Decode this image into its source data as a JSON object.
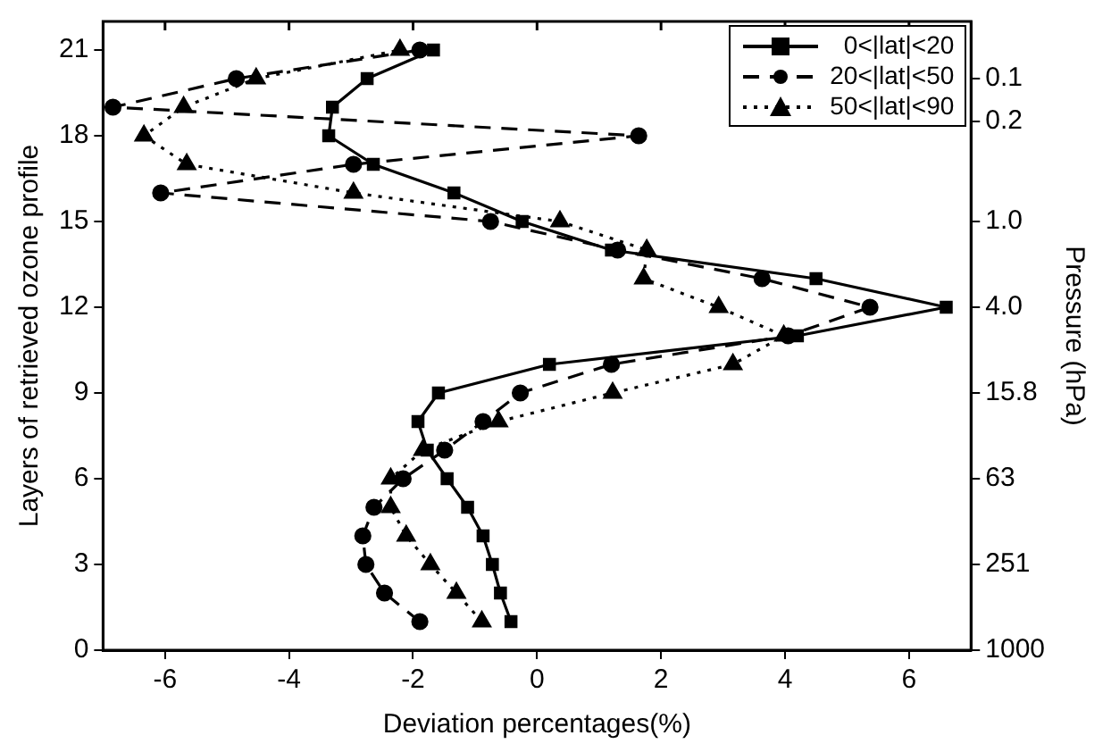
{
  "chart_data": {
    "type": "line",
    "xlabel": "Deviation percentages(%)",
    "ylabel": "Layers of retrieved ozone profile",
    "y2label": "Pressure (hPa)",
    "xlim": [
      -7,
      7
    ],
    "xticks": [
      -6,
      -4,
      -2,
      0,
      2,
      4,
      6
    ],
    "ylim": [
      0,
      22
    ],
    "yticks": [
      0,
      3,
      6,
      9,
      12,
      15,
      18,
      21
    ],
    "y2lim": [
      1000,
      0.04
    ],
    "y2ticks": [
      1000,
      251,
      63,
      15.8,
      {
        "value": 4,
        "label": "4.0"
      },
      {
        "value": 1,
        "label": "1.0"
      },
      0.2,
      0.1
    ],
    "log": "y2",
    "grid": false,
    "legend": "top right",
    "series": [
      {
        "name": "0<|lat|<20",
        "color": "#000000",
        "marker": "square",
        "line_style": "solid",
        "x": [
          -0.42,
          -0.59,
          -0.72,
          -0.87,
          -1.12,
          -1.45,
          -1.77,
          -1.92,
          -1.59,
          0.2,
          4.2,
          6.6,
          4.5,
          1.2,
          -0.24,
          -1.34,
          -2.64,
          -3.36,
          -3.3,
          -2.74,
          -1.67
        ],
        "values": [
          1,
          2,
          3,
          4,
          5,
          6,
          7,
          8,
          9,
          10,
          11,
          12,
          13,
          14,
          15,
          16,
          17,
          18,
          19,
          20,
          21
        ]
      },
      {
        "name": "20<|lat|<50",
        "color": "#000000",
        "marker": "circle",
        "line_style": "dashed",
        "x": [
          -1.89,
          -2.46,
          -2.76,
          -2.81,
          -2.63,
          -2.16,
          -1.49,
          -0.87,
          -0.27,
          1.2,
          4.05,
          5.37,
          3.63,
          1.3,
          -0.75,
          -6.07,
          -2.96,
          1.64,
          -6.84,
          -4.85,
          -1.89
        ],
        "values": [
          1,
          2,
          3,
          4,
          5,
          6,
          7,
          8,
          9,
          10,
          11,
          12,
          13,
          14,
          15,
          16,
          17,
          18,
          19,
          20,
          21
        ]
      },
      {
        "name": "50<|lat|<90",
        "color": "#000000",
        "marker": "triangle",
        "line_style": "dotted",
        "x": [
          -0.89,
          -1.3,
          -1.72,
          -2.11,
          -2.36,
          -2.36,
          -1.84,
          -0.62,
          1.22,
          3.16,
          3.98,
          2.93,
          1.72,
          1.77,
          0.37,
          -2.96,
          -5.65,
          -6.34,
          -5.7,
          -4.53,
          -2.21
        ],
        "values": [
          1,
          2,
          3,
          4,
          5,
          6,
          7,
          8,
          9,
          10,
          11,
          12,
          13,
          14,
          15,
          16,
          17,
          18,
          19,
          20,
          21
        ]
      }
    ]
  }
}
